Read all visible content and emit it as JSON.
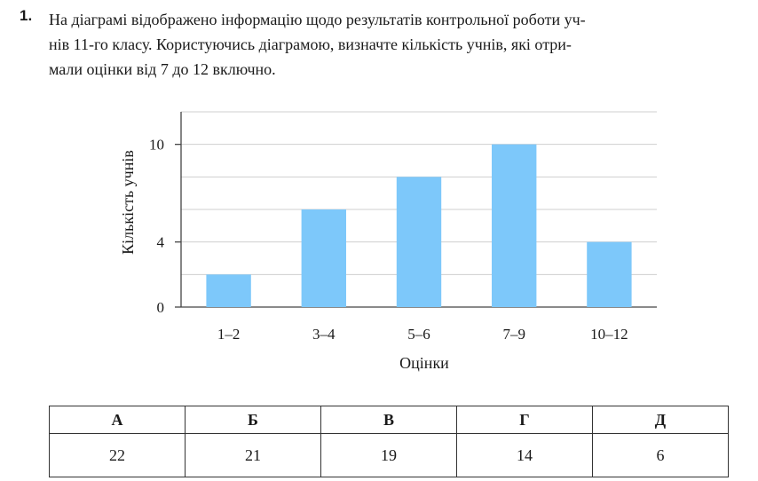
{
  "question": {
    "number": "1.",
    "lines": [
      "На діаграмі відображено інформацію щодо результатів контрольної роботи уч-",
      "нів 11-го класу. Користуючись діаграмою, визначте кількість учнів, які отри-",
      "мали оцінки від 7 до 12 включно."
    ]
  },
  "chart_data": {
    "type": "bar",
    "categories": [
      "1–2",
      "3–4",
      "5–6",
      "7–9",
      "10–12"
    ],
    "values": [
      2,
      6,
      8,
      10,
      4
    ],
    "xlabel": "Оцінки",
    "ylabel": "Кількість учнів",
    "ylim": [
      0,
      12
    ],
    "yticks": [
      0,
      4,
      10
    ],
    "gridlines": [
      0,
      2,
      4,
      6,
      8,
      10,
      12
    ],
    "grid": true,
    "bar_color": "#7dc8fa"
  },
  "answers": {
    "letters": [
      "А",
      "Б",
      "В",
      "Г",
      "Д"
    ],
    "values": [
      "22",
      "21",
      "19",
      "14",
      "6"
    ]
  }
}
